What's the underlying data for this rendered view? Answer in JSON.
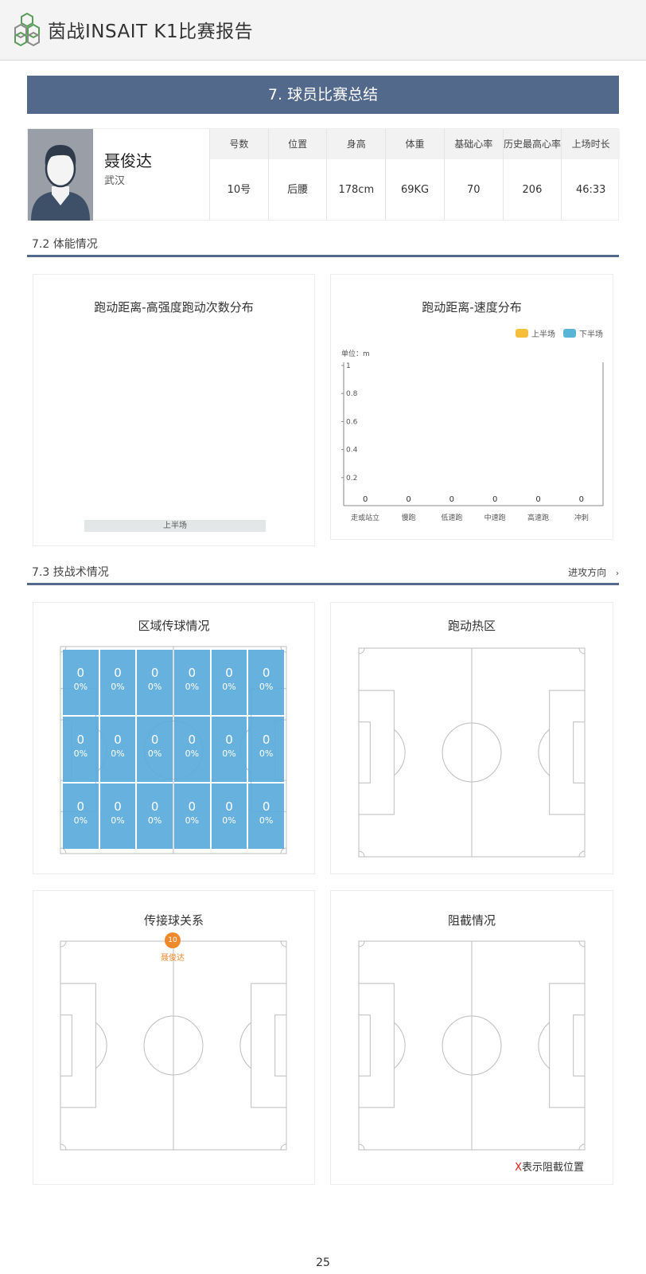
{
  "header": {
    "title": "茵战INSAIT K1比赛报告"
  },
  "section": {
    "title": "7. 球员比赛总结"
  },
  "player": {
    "name": "聂俊达",
    "team": "武汉",
    "stats": [
      {
        "label": "号数",
        "value": "10号"
      },
      {
        "label": "位置",
        "value": "后腰"
      },
      {
        "label": "身高",
        "value": "178cm"
      },
      {
        "label": "体重",
        "value": "69KG"
      },
      {
        "label": "基础心率",
        "value": "70"
      },
      {
        "label": "历史最高心率",
        "value": "206"
      },
      {
        "label": "上场时长",
        "value": "46:33"
      }
    ]
  },
  "physical": {
    "title": "7.2 体能情况",
    "distance_intensity": {
      "title": "跑动距离-高强度跑动次数分布",
      "period": "上半场"
    },
    "distance_speed": {
      "title": "跑动距离-速度分布",
      "unit": "单位：m",
      "legend": [
        "上半场",
        "下半场"
      ]
    }
  },
  "tactics": {
    "title": "7.3 技战术情况",
    "direction": "进攻方向",
    "zone_pass": {
      "title": "区域传球情况",
      "cells": [
        {
          "count": "0",
          "pct": "0%"
        },
        {
          "count": "0",
          "pct": "0%"
        },
        {
          "count": "0",
          "pct": "0%"
        },
        {
          "count": "0",
          "pct": "0%"
        },
        {
          "count": "0",
          "pct": "0%"
        },
        {
          "count": "0",
          "pct": "0%"
        },
        {
          "count": "0",
          "pct": "0%"
        },
        {
          "count": "0",
          "pct": "0%"
        },
        {
          "count": "0",
          "pct": "0%"
        },
        {
          "count": "0",
          "pct": "0%"
        },
        {
          "count": "0",
          "pct": "0%"
        },
        {
          "count": "0",
          "pct": "0%"
        },
        {
          "count": "0",
          "pct": "0%"
        },
        {
          "count": "0",
          "pct": "0%"
        },
        {
          "count": "0",
          "pct": "0%"
        },
        {
          "count": "0",
          "pct": "0%"
        },
        {
          "count": "0",
          "pct": "0%"
        },
        {
          "count": "0",
          "pct": "0%"
        }
      ]
    },
    "heatmap": {
      "title": "跑动热区"
    },
    "pass_network": {
      "title": "传接球关系",
      "player_number": "10",
      "player_name": "聂俊达"
    },
    "interception": {
      "title": "阻截情况",
      "note_mark": "X",
      "note_text": "表示阻截位置"
    }
  },
  "colors": {
    "banner": "#52698c",
    "zone_fill": "#5aaadc",
    "first_half": "#f5bf3c",
    "second_half": "#5ab4d6",
    "player_node": "#f0892c"
  },
  "chart_data": {
    "type": "bar",
    "title": "跑动距离-速度分布",
    "unit": "单位：m",
    "categories": [
      "走或站立",
      "慢跑",
      "低速跑",
      "中速跑",
      "高速跑",
      "冲刺"
    ],
    "series": [
      {
        "name": "上半场",
        "values": [
          0,
          0,
          0,
          0,
          0,
          0
        ]
      },
      {
        "name": "下半场",
        "values": [
          0,
          0,
          0,
          0,
          0,
          0
        ]
      }
    ],
    "data_labels": [
      "0",
      "0",
      "0",
      "0",
      "0",
      "0"
    ],
    "yticks": [
      "0.2",
      "0.4",
      "0.6",
      "0.8",
      "1"
    ],
    "ylim": [
      0,
      1
    ],
    "legend": "top-right",
    "grid": false
  }
}
